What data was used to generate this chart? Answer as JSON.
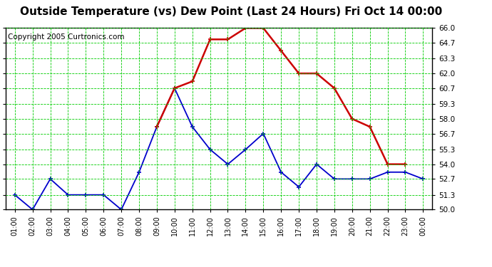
{
  "title": "Outside Temperature (vs) Dew Point (Last 24 Hours) Fri Oct 14 00:00",
  "copyright": "Copyright 2005 Curtronics.com",
  "x_labels": [
    "01:00",
    "02:00",
    "03:00",
    "04:00",
    "05:00",
    "06:00",
    "07:00",
    "08:00",
    "09:00",
    "10:00",
    "11:00",
    "12:00",
    "13:00",
    "14:00",
    "15:00",
    "16:00",
    "17:00",
    "18:00",
    "19:00",
    "20:00",
    "21:00",
    "22:00",
    "23:00",
    "00:00"
  ],
  "temp_data": [
    51.3,
    50.0,
    52.7,
    51.3,
    51.3,
    51.3,
    50.0,
    53.3,
    57.3,
    60.7,
    57.3,
    55.3,
    54.0,
    55.3,
    56.7,
    53.3,
    52.0,
    54.0,
    52.7,
    52.7,
    52.7,
    53.3,
    53.3,
    52.7
  ],
  "dew_data": [
    null,
    null,
    null,
    null,
    null,
    null,
    null,
    null,
    57.3,
    60.7,
    61.3,
    65.0,
    65.0,
    66.0,
    66.0,
    64.0,
    62.0,
    62.0,
    60.7,
    58.0,
    57.3,
    54.0,
    54.0,
    null
  ],
  "temp_color": "#0000cc",
  "dew_color": "#cc0000",
  "bg_color": "#ffffff",
  "grid_color": "#00cc00",
  "ylim": [
    50.0,
    66.0
  ],
  "yticks": [
    50.0,
    51.3,
    52.7,
    54.0,
    55.3,
    56.7,
    58.0,
    59.3,
    60.7,
    62.0,
    63.3,
    64.7,
    66.0
  ],
  "title_fontsize": 11,
  "copyright_fontsize": 7.5
}
